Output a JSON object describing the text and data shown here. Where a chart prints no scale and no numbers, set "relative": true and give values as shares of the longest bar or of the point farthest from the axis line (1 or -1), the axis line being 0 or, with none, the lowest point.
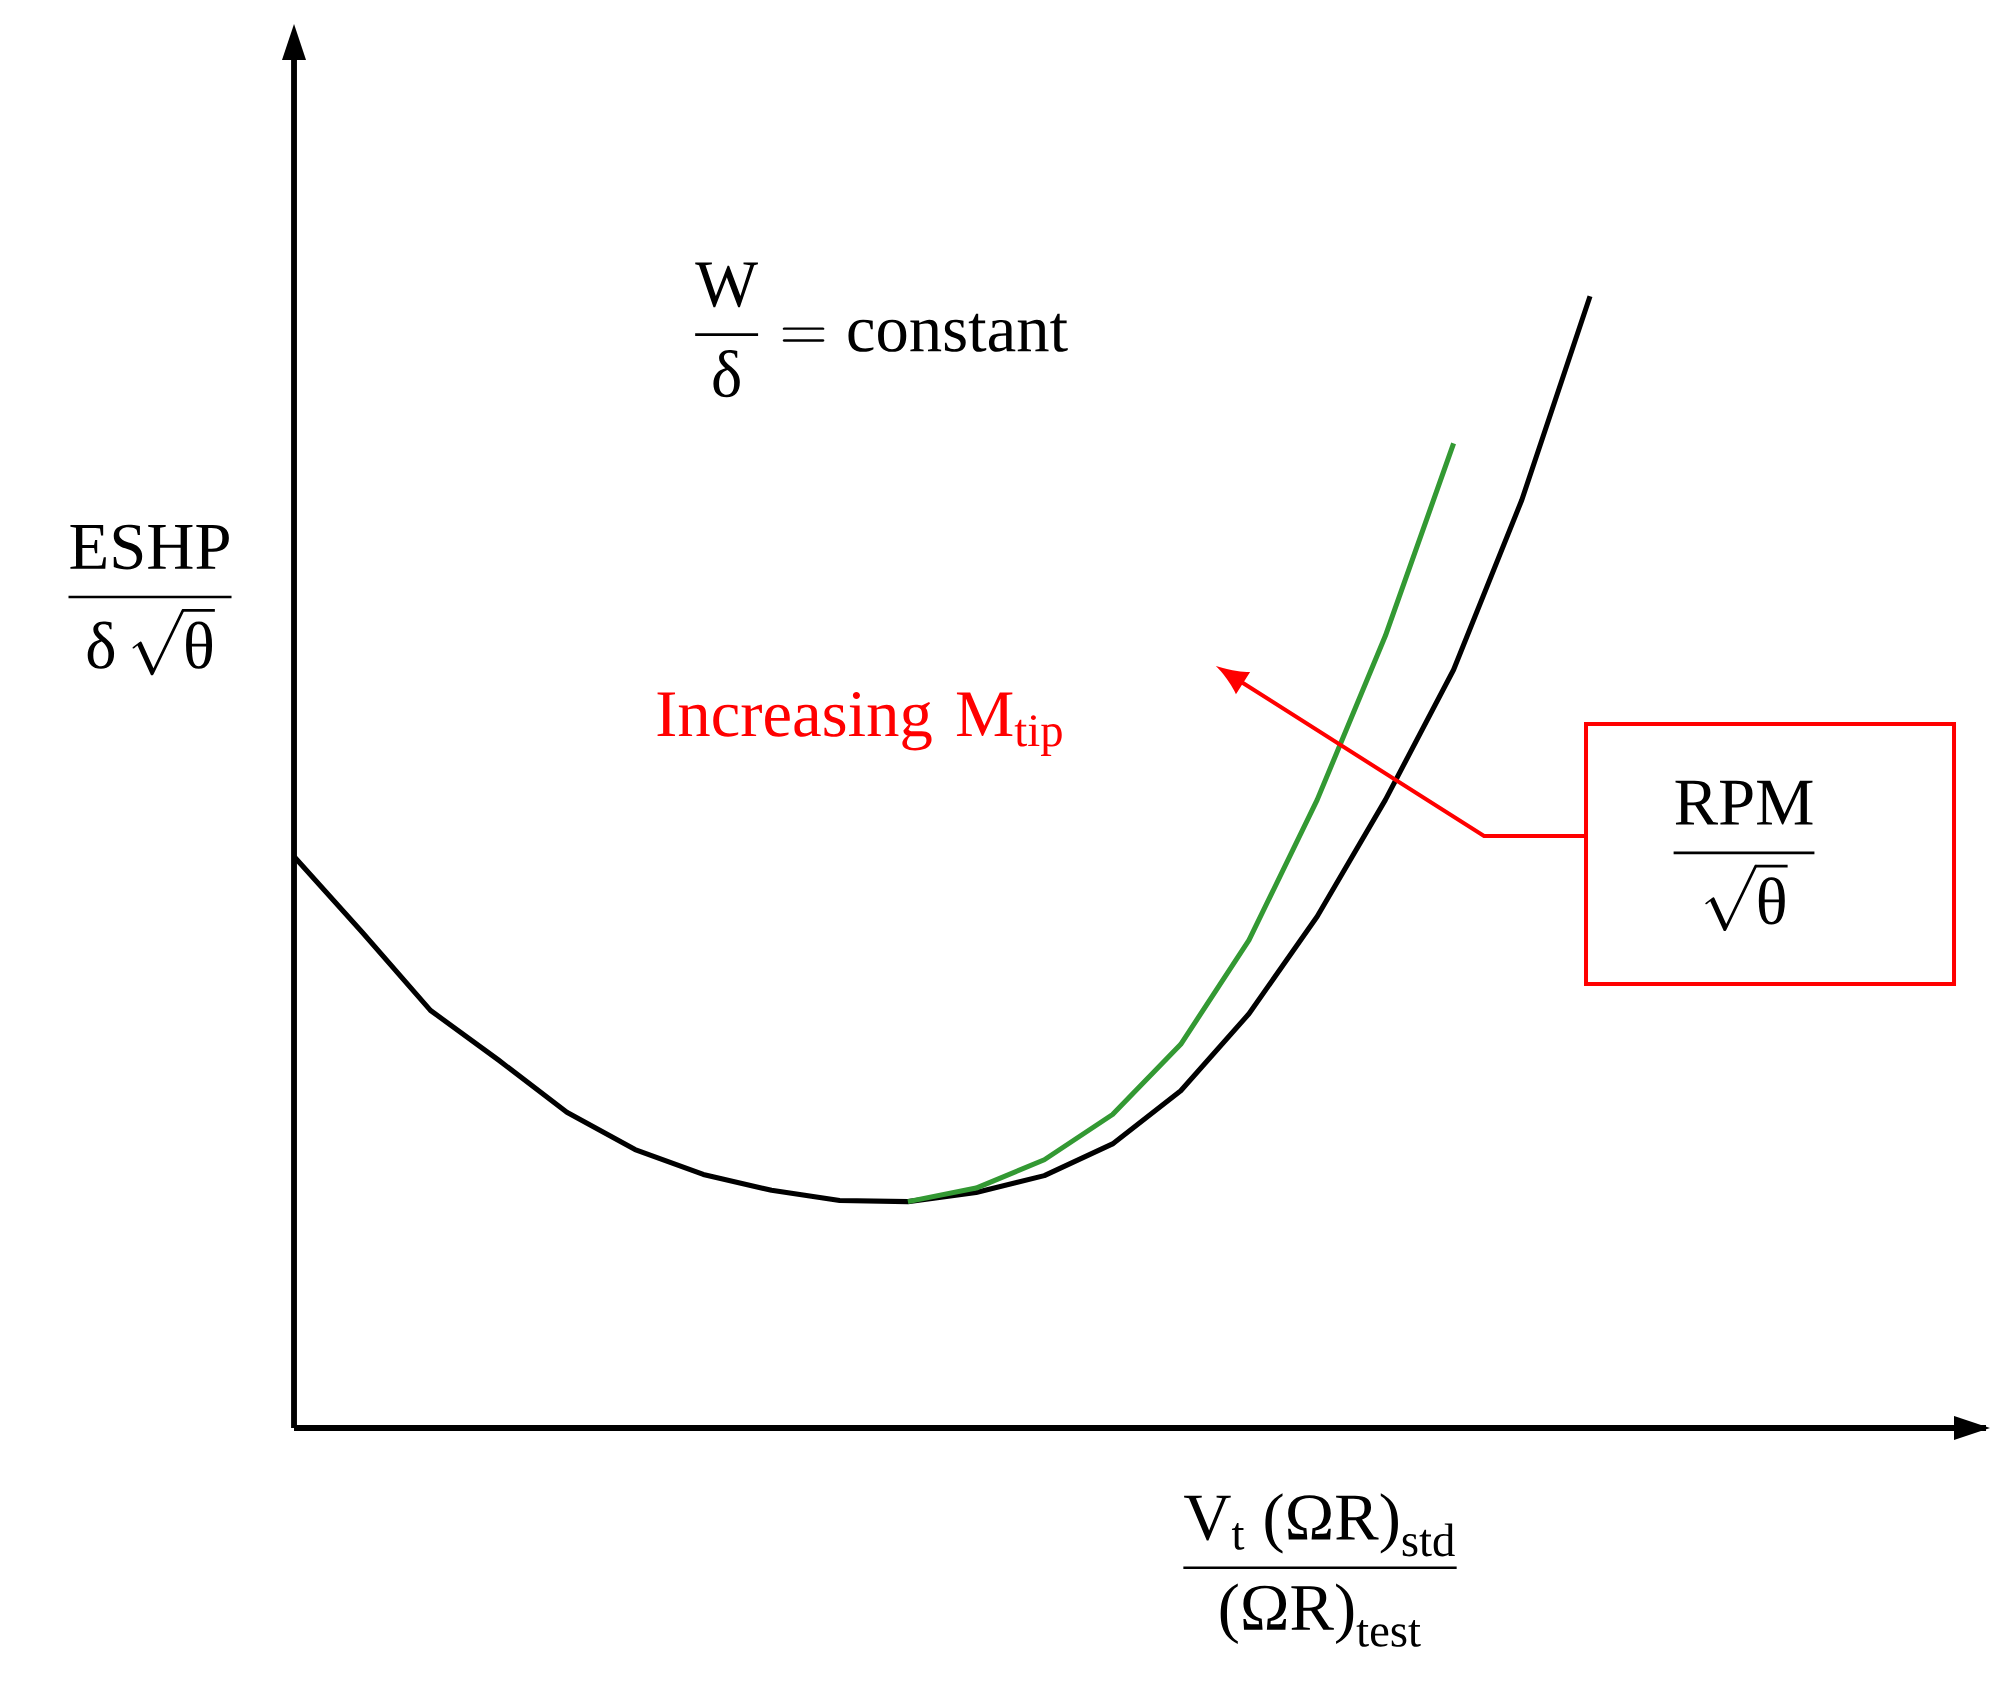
{
  "chart_data": {
    "type": "line",
    "relative": true,
    "xlabel": "\\frac{\\text{V}_{\\text{t}}\\ \\text{(ΩR)}_{\\text{std}}}{\\text{(ΩR)}_{\\text{test}}}",
    "ylabel": "\\frac{\\text{ESHP}}{\\text{δ}\\,\\sqrt{\\text{θ}}}",
    "categories": [
      null,
      null,
      null,
      null,
      null,
      null,
      null,
      null,
      null,
      null,
      null,
      null,
      null,
      null,
      null,
      null,
      null,
      null,
      null,
      null
    ],
    "series": [
      {
        "color": "#000000",
        "values": [
          0.505,
          0.438,
          0.369,
          0.325,
          0.279,
          0.246,
          0.224,
          0.21,
          0.201,
          0.2,
          0.208,
          0.223,
          0.251,
          0.298,
          0.366,
          0.452,
          0.555,
          0.67,
          0.82,
          1
        ]
      },
      {
        "color": "#339933",
        "values": [
          null,
          null,
          null,
          null,
          null,
          null,
          null,
          null,
          null,
          0.2,
          0.212,
          0.237,
          0.277,
          0.339,
          0.431,
          0.555,
          0.7,
          0.87,
          null,
          null
        ]
      }
    ],
    "annotations": [
      "\\frac{\\text{W}}{\\text{δ}} = \\text{constant}",
      "Increasing M$_{tip}$",
      "\\frac{\\text{RPM}}{\\sqrt{\\text{θ}}}"
    ]
  }
}
